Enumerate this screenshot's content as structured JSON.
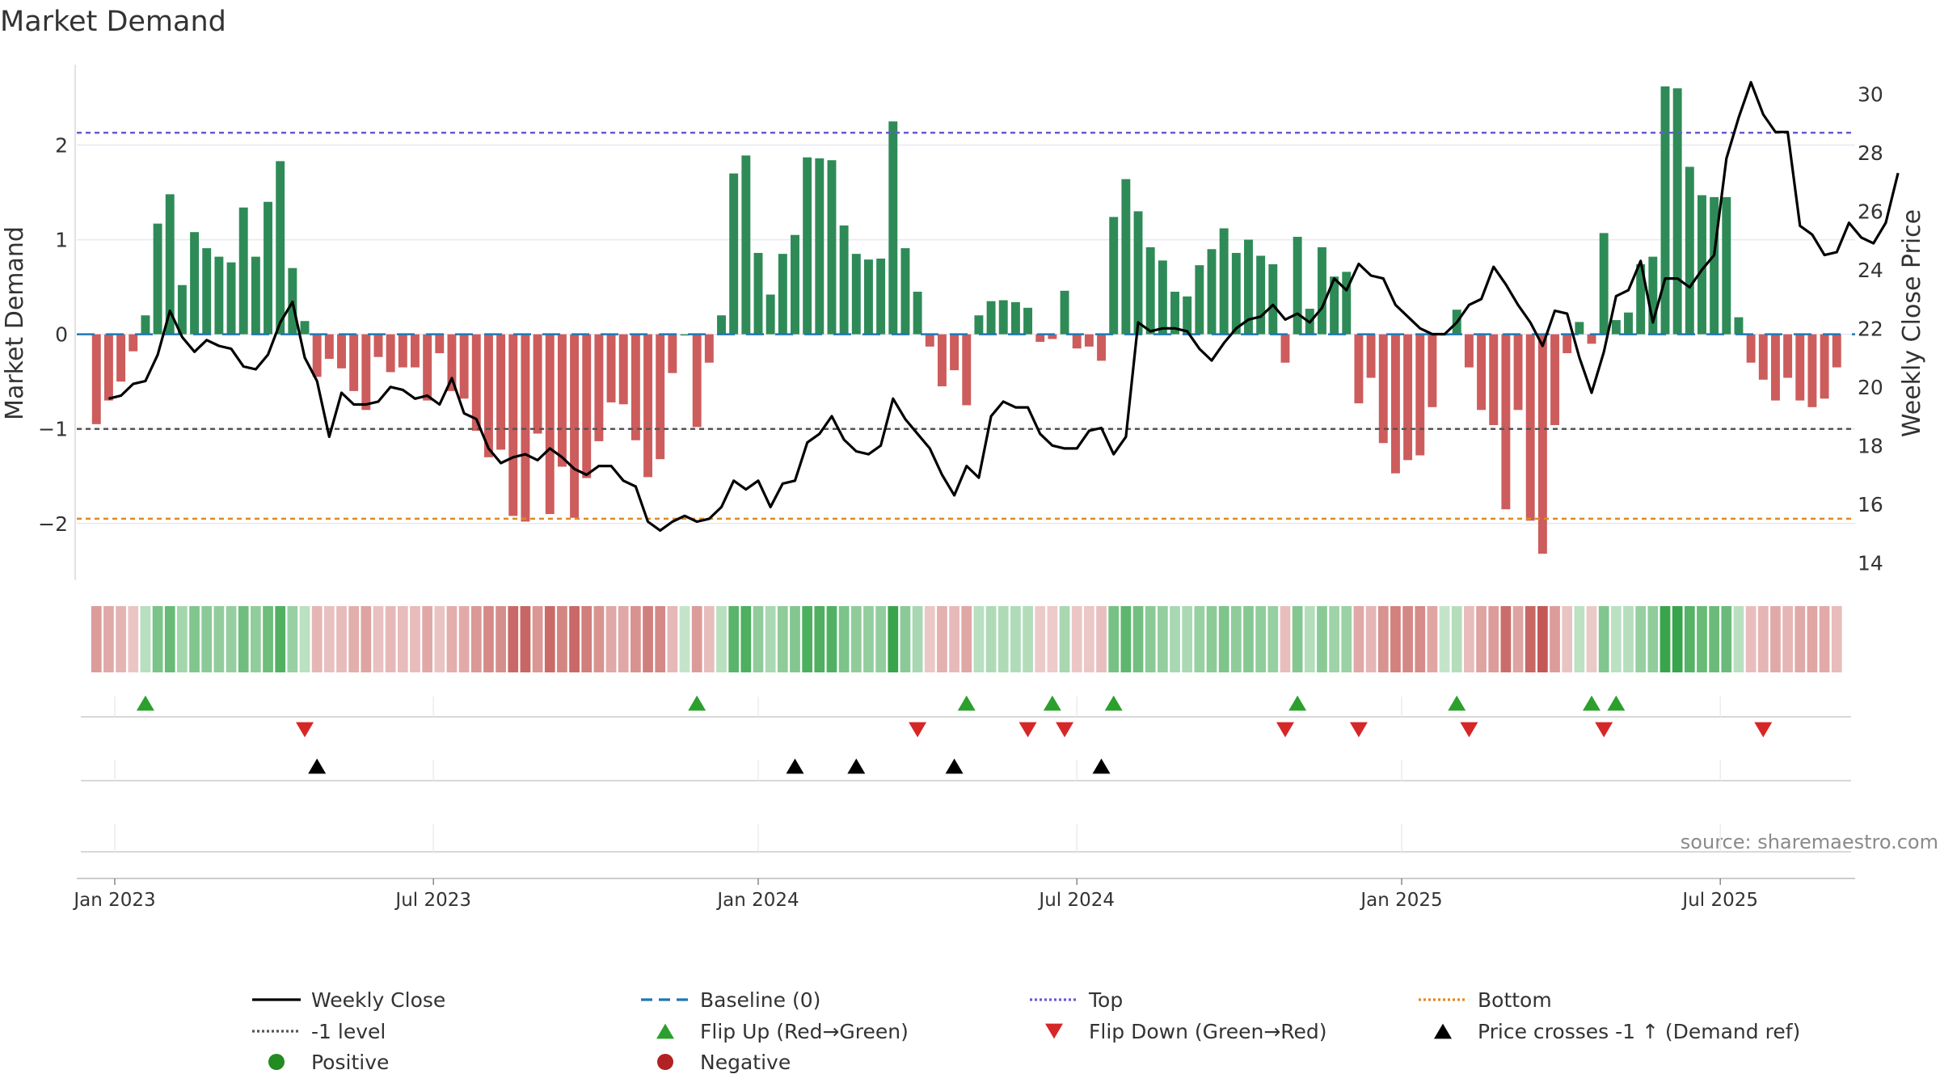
{
  "chart_data": {
    "type": "bar",
    "title": "Market Demand",
    "ylabel_left": "Market Demand",
    "ylabel_right": "Weekly Close Price",
    "source": "source: sharemaestro.com",
    "ylim_left": [
      -2.6,
      2.85
    ],
    "yticks_left": [
      {
        "v": 2,
        "label": "2"
      },
      {
        "v": 1,
        "label": "1"
      },
      {
        "v": 0,
        "label": "0"
      },
      {
        "v": -1,
        "label": "−1"
      },
      {
        "v": -2,
        "label": "−2"
      }
    ],
    "ylim_right": [
      13.4,
      31.0
    ],
    "yticks_right": [
      {
        "v": 30,
        "label": "30"
      },
      {
        "v": 28,
        "label": "28"
      },
      {
        "v": 26,
        "label": "26"
      },
      {
        "v": 24,
        "label": "24"
      },
      {
        "v": 22,
        "label": "22"
      },
      {
        "v": 20,
        "label": "20"
      },
      {
        "v": 18,
        "label": "18"
      },
      {
        "v": 16,
        "label": "16"
      },
      {
        "v": 14,
        "label": "14"
      }
    ],
    "week_range": [
      -1.6,
      143.5
    ],
    "x_ticks": [
      {
        "week": 1.5,
        "label": "Jan 2023"
      },
      {
        "week": 27.5,
        "label": "Jul 2023"
      },
      {
        "week": 54,
        "label": "Jan 2024"
      },
      {
        "week": 80,
        "label": "Jul 2024"
      },
      {
        "week": 106.5,
        "label": "Jan 2025"
      },
      {
        "week": 132.5,
        "label": "Jul 2025"
      }
    ],
    "reference_lines": {
      "top": 2.13,
      "bottom": -1.95,
      "minus_one": -1,
      "baseline": 0
    },
    "demand": [
      -0.95,
      -0.7,
      -0.5,
      -0.18,
      0.2,
      1.17,
      1.48,
      0.52,
      1.08,
      0.91,
      0.82,
      0.76,
      1.34,
      0.82,
      1.4,
      1.83,
      0.7,
      0.14,
      -0.45,
      -0.26,
      -0.36,
      -0.6,
      -0.8,
      -0.24,
      -0.4,
      -0.35,
      -0.35,
      -0.7,
      -0.2,
      -0.6,
      -0.68,
      -1.02,
      -1.3,
      -1.22,
      -1.92,
      -1.98,
      -1.05,
      -1.9,
      -1.4,
      -1.94,
      -1.52,
      -1.13,
      -0.72,
      -0.74,
      -1.12,
      -1.51,
      -1.32,
      -0.41,
      0,
      -0.98,
      -0.3,
      0.2,
      1.7,
      1.89,
      0.86,
      0.42,
      0.85,
      1.05,
      1.87,
      1.86,
      1.84,
      1.15,
      0.85,
      0.79,
      0.8,
      2.25,
      0.91,
      0.45,
      -0.13,
      -0.55,
      -0.38,
      -0.75,
      0.2,
      0.35,
      0.36,
      0.34,
      0.28,
      -0.08,
      -0.05,
      0.46,
      -0.15,
      -0.13,
      -0.28,
      1.24,
      1.64,
      1.3,
      0.92,
      0.78,
      0.45,
      0.4,
      0.73,
      0.9,
      1.12,
      0.86,
      1.0,
      0.83,
      0.74,
      -0.3,
      1.03,
      0.27,
      0.92,
      0.61,
      0.66,
      -0.73,
      -0.46,
      -1.15,
      -1.47,
      -1.33,
      -1.28,
      -0.77,
      0,
      0.26,
      -0.35,
      -0.8,
      -0.96,
      -1.85,
      -0.8,
      -1.97,
      -2.32,
      -0.96,
      -0.2,
      0.13,
      -0.1,
      1.07,
      0.15,
      0.23,
      0.74,
      0.82,
      2.62,
      2.6,
      1.77,
      1.47,
      1.45,
      1.45,
      0.18,
      -0.3,
      -0.48,
      -0.7,
      -0.46,
      -0.7,
      -0.77,
      -0.68,
      -0.35
    ],
    "weekly_close": [
      19.6,
      19.7,
      20.1,
      20.2,
      21.1,
      22.6,
      21.7,
      21.2,
      21.6,
      21.4,
      21.3,
      20.7,
      20.6,
      21.1,
      22.2,
      22.9,
      21.0,
      20.2,
      18.3,
      19.8,
      19.4,
      19.4,
      19.5,
      20.0,
      19.9,
      19.6,
      19.7,
      19.4,
      20.3,
      19.1,
      18.9,
      17.9,
      17.4,
      17.6,
      17.7,
      17.5,
      17.9,
      17.6,
      17.2,
      17.0,
      17.3,
      17.3,
      16.8,
      16.6,
      15.4,
      15.1,
      15.4,
      15.6,
      15.4,
      15.5,
      15.9,
      16.8,
      16.5,
      16.8,
      15.9,
      16.7,
      16.8,
      18.1,
      18.4,
      19.0,
      18.2,
      17.8,
      17.7,
      18.0,
      19.6,
      18.9,
      18.4,
      17.9,
      17.0,
      16.3,
      17.3,
      16.9,
      19.0,
      19.5,
      19.3,
      19.3,
      18.4,
      18.0,
      17.9,
      17.9,
      18.5,
      18.6,
      17.7,
      18.3,
      22.2,
      21.9,
      22.0,
      22.0,
      21.9,
      21.3,
      20.9,
      21.5,
      22.0,
      22.3,
      22.4,
      22.8,
      22.3,
      22.5,
      22.2,
      22.7,
      23.7,
      23.3,
      24.2,
      23.8,
      23.7,
      22.8,
      22.4,
      22.0,
      21.8,
      21.8,
      22.2,
      22.8,
      23.0,
      24.1,
      23.5,
      22.8,
      22.2,
      21.4,
      22.6,
      22.5,
      21.0,
      19.8,
      21.2,
      23.1,
      23.3,
      24.3,
      22.2,
      23.7,
      23.7,
      23.4,
      24.0,
      24.5,
      27.8,
      29.2,
      30.4,
      29.3,
      28.7,
      28.7,
      25.5,
      25.2,
      24.5,
      24.6,
      25.6,
      25.1,
      24.9,
      25.6,
      27.3
    ],
    "close_start_index": 1,
    "flip_up_weeks": [
      4,
      49,
      71,
      78,
      83,
      98,
      111,
      122,
      124
    ],
    "flip_down_weeks": [
      17,
      67,
      76,
      79,
      97,
      103,
      112,
      123,
      136
    ],
    "price_cross_weeks": [
      18,
      57,
      62,
      70,
      82
    ],
    "colors": {
      "positive_bar": "#2e8b57",
      "negative_bar": "#cd5c5c",
      "close_line": "#000000",
      "baseline": "#1f77b4",
      "top": "#6a5acd",
      "bottom": "#e08a1e",
      "minus_one": "#555555",
      "flip_up": "#2ca02c",
      "flip_down": "#d62728",
      "price_cross": "#000000",
      "positive_dot": "#228b22",
      "negative_dot": "#b22222",
      "grid": "#e8e8f2"
    },
    "legend": [
      {
        "kind": "line",
        "label": "Weekly Close",
        "color": "#000000",
        "dash": ""
      },
      {
        "kind": "line",
        "label": "Baseline (0)",
        "color": "#1f77b4",
        "dash": "14 8"
      },
      {
        "kind": "line",
        "label": "Top",
        "color": "#6a5acd",
        "dash": "3 3"
      },
      {
        "kind": "line",
        "label": "Bottom",
        "color": "#e08a1e",
        "dash": "3 3"
      },
      {
        "kind": "line",
        "label": "-1 level",
        "color": "#555555",
        "dash": "3 3"
      },
      {
        "kind": "tri-up",
        "label": "Flip Up (Red→Green)",
        "color": "#2ca02c"
      },
      {
        "kind": "tri-down",
        "label": "Flip Down (Green→Red)",
        "color": "#d62728"
      },
      {
        "kind": "tri-up",
        "label": "Price crosses -1 ↑ (Demand ref)",
        "color": "#000000"
      },
      {
        "kind": "dot",
        "label": "Positive",
        "color": "#228b22"
      },
      {
        "kind": "dot",
        "label": "Negative",
        "color": "#b22222"
      }
    ]
  }
}
